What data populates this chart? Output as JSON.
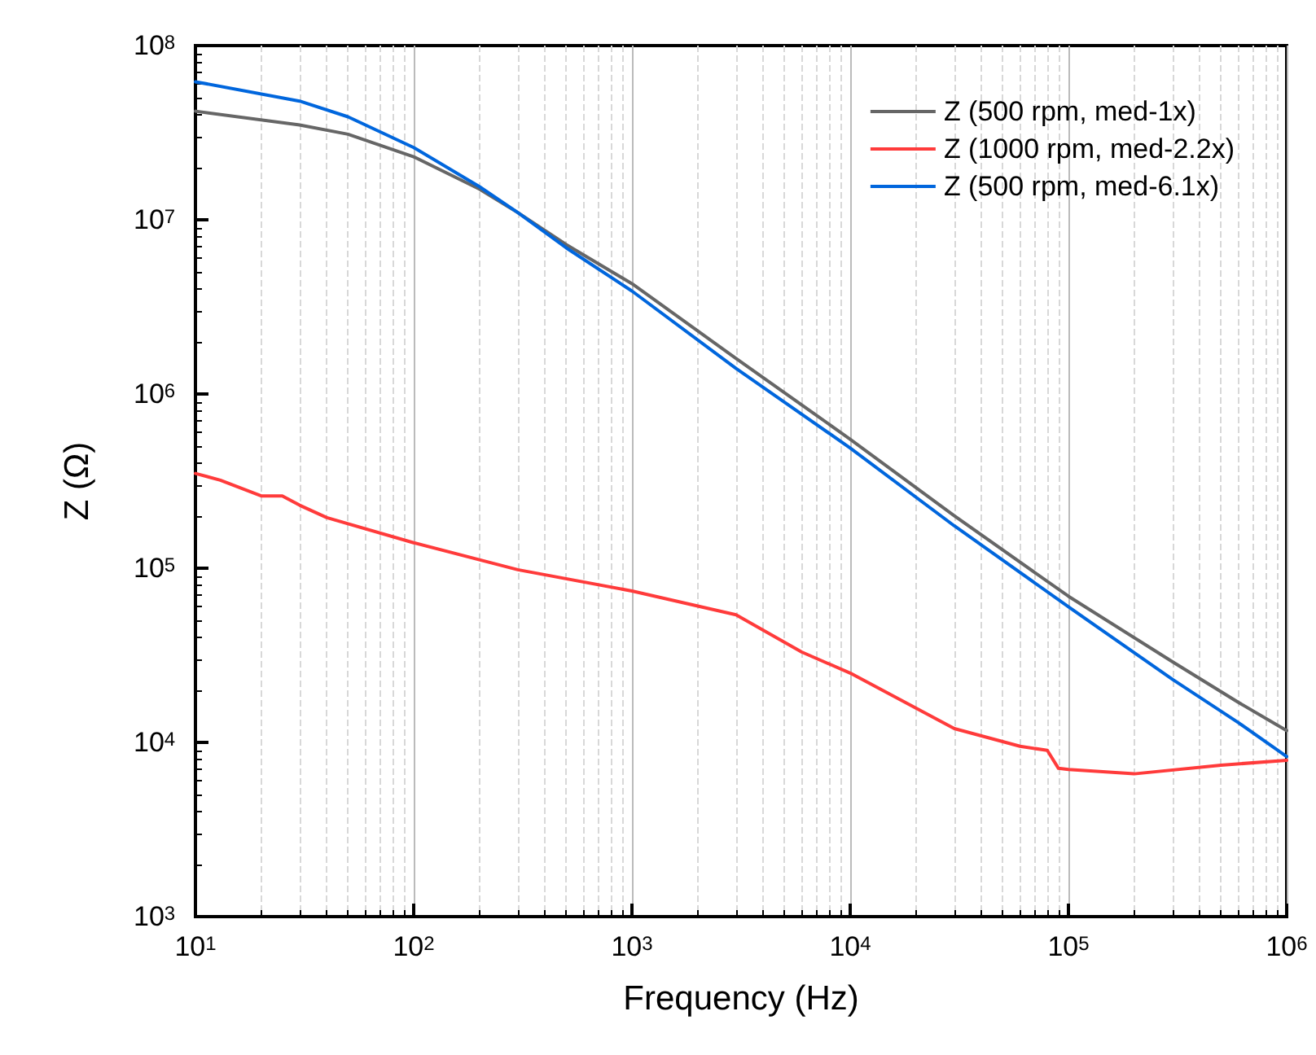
{
  "chart_data": {
    "type": "line",
    "xlabel": "Frequency (Hz)",
    "ylabel": "Z (Ω)",
    "log": "xy",
    "grid": "x",
    "legend": "top right",
    "marker": "none",
    "line_style": "solid",
    "xlim": [
      10,
      1000000
    ],
    "ylim": [
      1000,
      100000000
    ],
    "xticks": [
      {
        "value": 10,
        "label": "10$^{1}$"
      },
      {
        "value": 100,
        "label": "10$^{2}$"
      },
      {
        "value": 1000,
        "label": "10$^{3}$"
      },
      {
        "value": 10000,
        "label": "10$^{4}$"
      },
      {
        "value": 100000,
        "label": "10$^{5}$"
      },
      {
        "value": 1000000,
        "label": "10$^{6}$"
      }
    ],
    "yticks": [
      {
        "value": 1000,
        "label": "10$^{3}$"
      },
      {
        "value": 10000,
        "label": "10$^{4}$"
      },
      {
        "value": 100000,
        "label": "10$^{5}$"
      },
      {
        "value": 1000000,
        "label": "10$^{6}$"
      },
      {
        "value": 10000000,
        "label": "10$^{7}$"
      },
      {
        "value": 100000000,
        "label": "10$^{8}$"
      }
    ],
    "series": [
      {
        "name": "Z (500 rpm, med-1x)",
        "color": "#666666",
        "x": [
          10,
          30,
          50,
          100,
          200,
          300,
          500,
          1000,
          3000,
          10000,
          30000,
          100000,
          300000,
          600000,
          1000000
        ],
        "values": [
          42000000,
          35000000,
          31000000,
          23000000,
          15000000,
          11000000,
          7200000,
          4300000,
          1600000,
          550000,
          200000,
          69000,
          29000,
          17000,
          11700
        ]
      },
      {
        "name": "Z (1000 rpm, med-2.2x)",
        "color": "#ff3b3b",
        "x": [
          10,
          13,
          20,
          25,
          30,
          40,
          100,
          300,
          1000,
          3000,
          6000,
          10000,
          30000,
          60000,
          80000,
          90000,
          100000,
          200000,
          500000,
          1000000
        ],
        "values": [
          350000,
          320000,
          260000,
          260000,
          230000,
          195000,
          140000,
          98000,
          74000,
          54000,
          33000,
          25000,
          12000,
          9500,
          9000,
          7100,
          7000,
          6600,
          7400,
          7900
        ]
      },
      {
        "name": "Z (500 rpm, med-6.1x)",
        "color": "#0066dd",
        "x": [
          10,
          30,
          50,
          100,
          200,
          300,
          500,
          1000,
          3000,
          10000,
          30000,
          100000,
          300000,
          600000,
          1000000
        ],
        "values": [
          62000000,
          48000000,
          39000000,
          26000000,
          15500000,
          11000000,
          6900000,
          3900000,
          1400000,
          490000,
          175000,
          60000,
          23000,
          13000,
          8300
        ]
      }
    ]
  }
}
